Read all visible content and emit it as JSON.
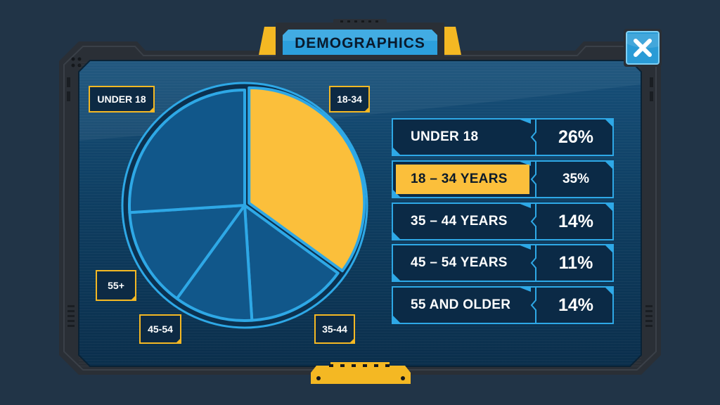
{
  "header": {
    "title": "DEMOGRAPHICS"
  },
  "colors": {
    "background": "#213447",
    "panel": "#0d3a5c",
    "accent_blue": "#2ea8e6",
    "highlight": "#fbbf3b",
    "slice_fill": "#11578a",
    "frame": "#2a2f36"
  },
  "icons": {
    "close": "close-x-icon"
  },
  "chart_data": {
    "type": "pie",
    "title": "DEMOGRAPHICS",
    "highlighted": "18 – 34 YEARS",
    "categories": [
      "UNDER 18",
      "18 – 34 YEARS",
      "35 – 44 YEARS",
      "45 – 54 YEARS",
      "55 AND OLDER"
    ],
    "values": [
      26,
      35,
      14,
      11,
      14
    ],
    "value_labels": [
      "26%",
      "35%",
      "14%",
      "11%",
      "14%"
    ],
    "slice_labels": [
      "UNDER 18",
      "18-34",
      "35-44",
      "45-54",
      "55+"
    ]
  }
}
